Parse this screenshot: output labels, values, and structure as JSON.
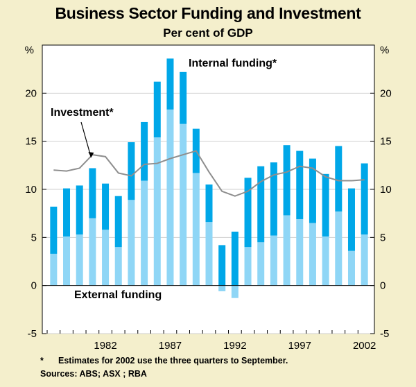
{
  "colors": {
    "background": "#f4efcc",
    "internal": "#00a7e8",
    "external": "#8fd6f6",
    "investment": "#8e8e8e",
    "plot_bg": "#ffffff"
  },
  "footnote": {
    "marker": "*",
    "text": "Estimates for 2002 use the three quarters to September."
  },
  "sources": "Sources: ABS; ASX ; RBA",
  "chart_data": {
    "type": "bar",
    "title": "Business Sector Funding and Investment",
    "subtitle": "Per cent of GDP",
    "ylabel_left": "%",
    "ylabel_right": "%",
    "ylim": [
      -5,
      25
    ],
    "yticks": [
      -5,
      0,
      5,
      10,
      15,
      20
    ],
    "ytick_labels": [
      "-5",
      "0",
      "5",
      "10",
      "15",
      "20"
    ],
    "xtick_labels": [
      {
        "year": 1982,
        "label": "1982"
      },
      {
        "year": 1987,
        "label": "1987"
      },
      {
        "year": 1992,
        "label": "1992"
      },
      {
        "year": 1997,
        "label": "1997"
      },
      {
        "year": 2002,
        "label": "2002"
      }
    ],
    "x": [
      1978,
      1979,
      1980,
      1981,
      1982,
      1983,
      1984,
      1985,
      1986,
      1987,
      1988,
      1989,
      1990,
      1991,
      1992,
      1993,
      1994,
      1995,
      1996,
      1997,
      1998,
      1999,
      2000,
      2001,
      2002
    ],
    "series": [
      {
        "name": "External funding",
        "kind": "bar",
        "values": [
          3.3,
          5.1,
          5.3,
          7.0,
          5.8,
          4.0,
          8.9,
          10.9,
          15.4,
          18.3,
          16.8,
          11.7,
          6.6,
          -0.6,
          -1.3,
          4.0,
          4.5,
          5.2,
          7.3,
          6.9,
          6.5,
          5.1,
          7.7,
          3.6,
          5.3
        ]
      },
      {
        "name": "Internal funding*",
        "kind": "bar",
        "stacked_on": "External funding",
        "values": [
          4.9,
          5.0,
          5.1,
          5.2,
          4.8,
          5.3,
          6.0,
          6.1,
          5.8,
          5.3,
          5.4,
          4.6,
          3.9,
          4.2,
          5.6,
          7.2,
          7.9,
          7.6,
          7.3,
          7.1,
          6.7,
          6.5,
          6.8,
          6.5,
          7.4
        ]
      },
      {
        "name": "Investment*",
        "kind": "line",
        "values": [
          12.0,
          11.9,
          12.2,
          13.6,
          13.4,
          11.7,
          11.4,
          12.6,
          12.7,
          13.2,
          13.6,
          14.0,
          11.8,
          9.8,
          9.3,
          9.8,
          10.8,
          11.5,
          11.8,
          12.4,
          12.2,
          11.3,
          10.9,
          10.9,
          11.0
        ]
      }
    ],
    "annotations": [
      {
        "text": "Internal funding*",
        "target": "Internal funding*"
      },
      {
        "text": "Investment*",
        "target": "Investment*",
        "arrow_to": {
          "x": 1981,
          "y": 13.6
        }
      },
      {
        "text": "External funding",
        "target": "External funding"
      }
    ]
  }
}
